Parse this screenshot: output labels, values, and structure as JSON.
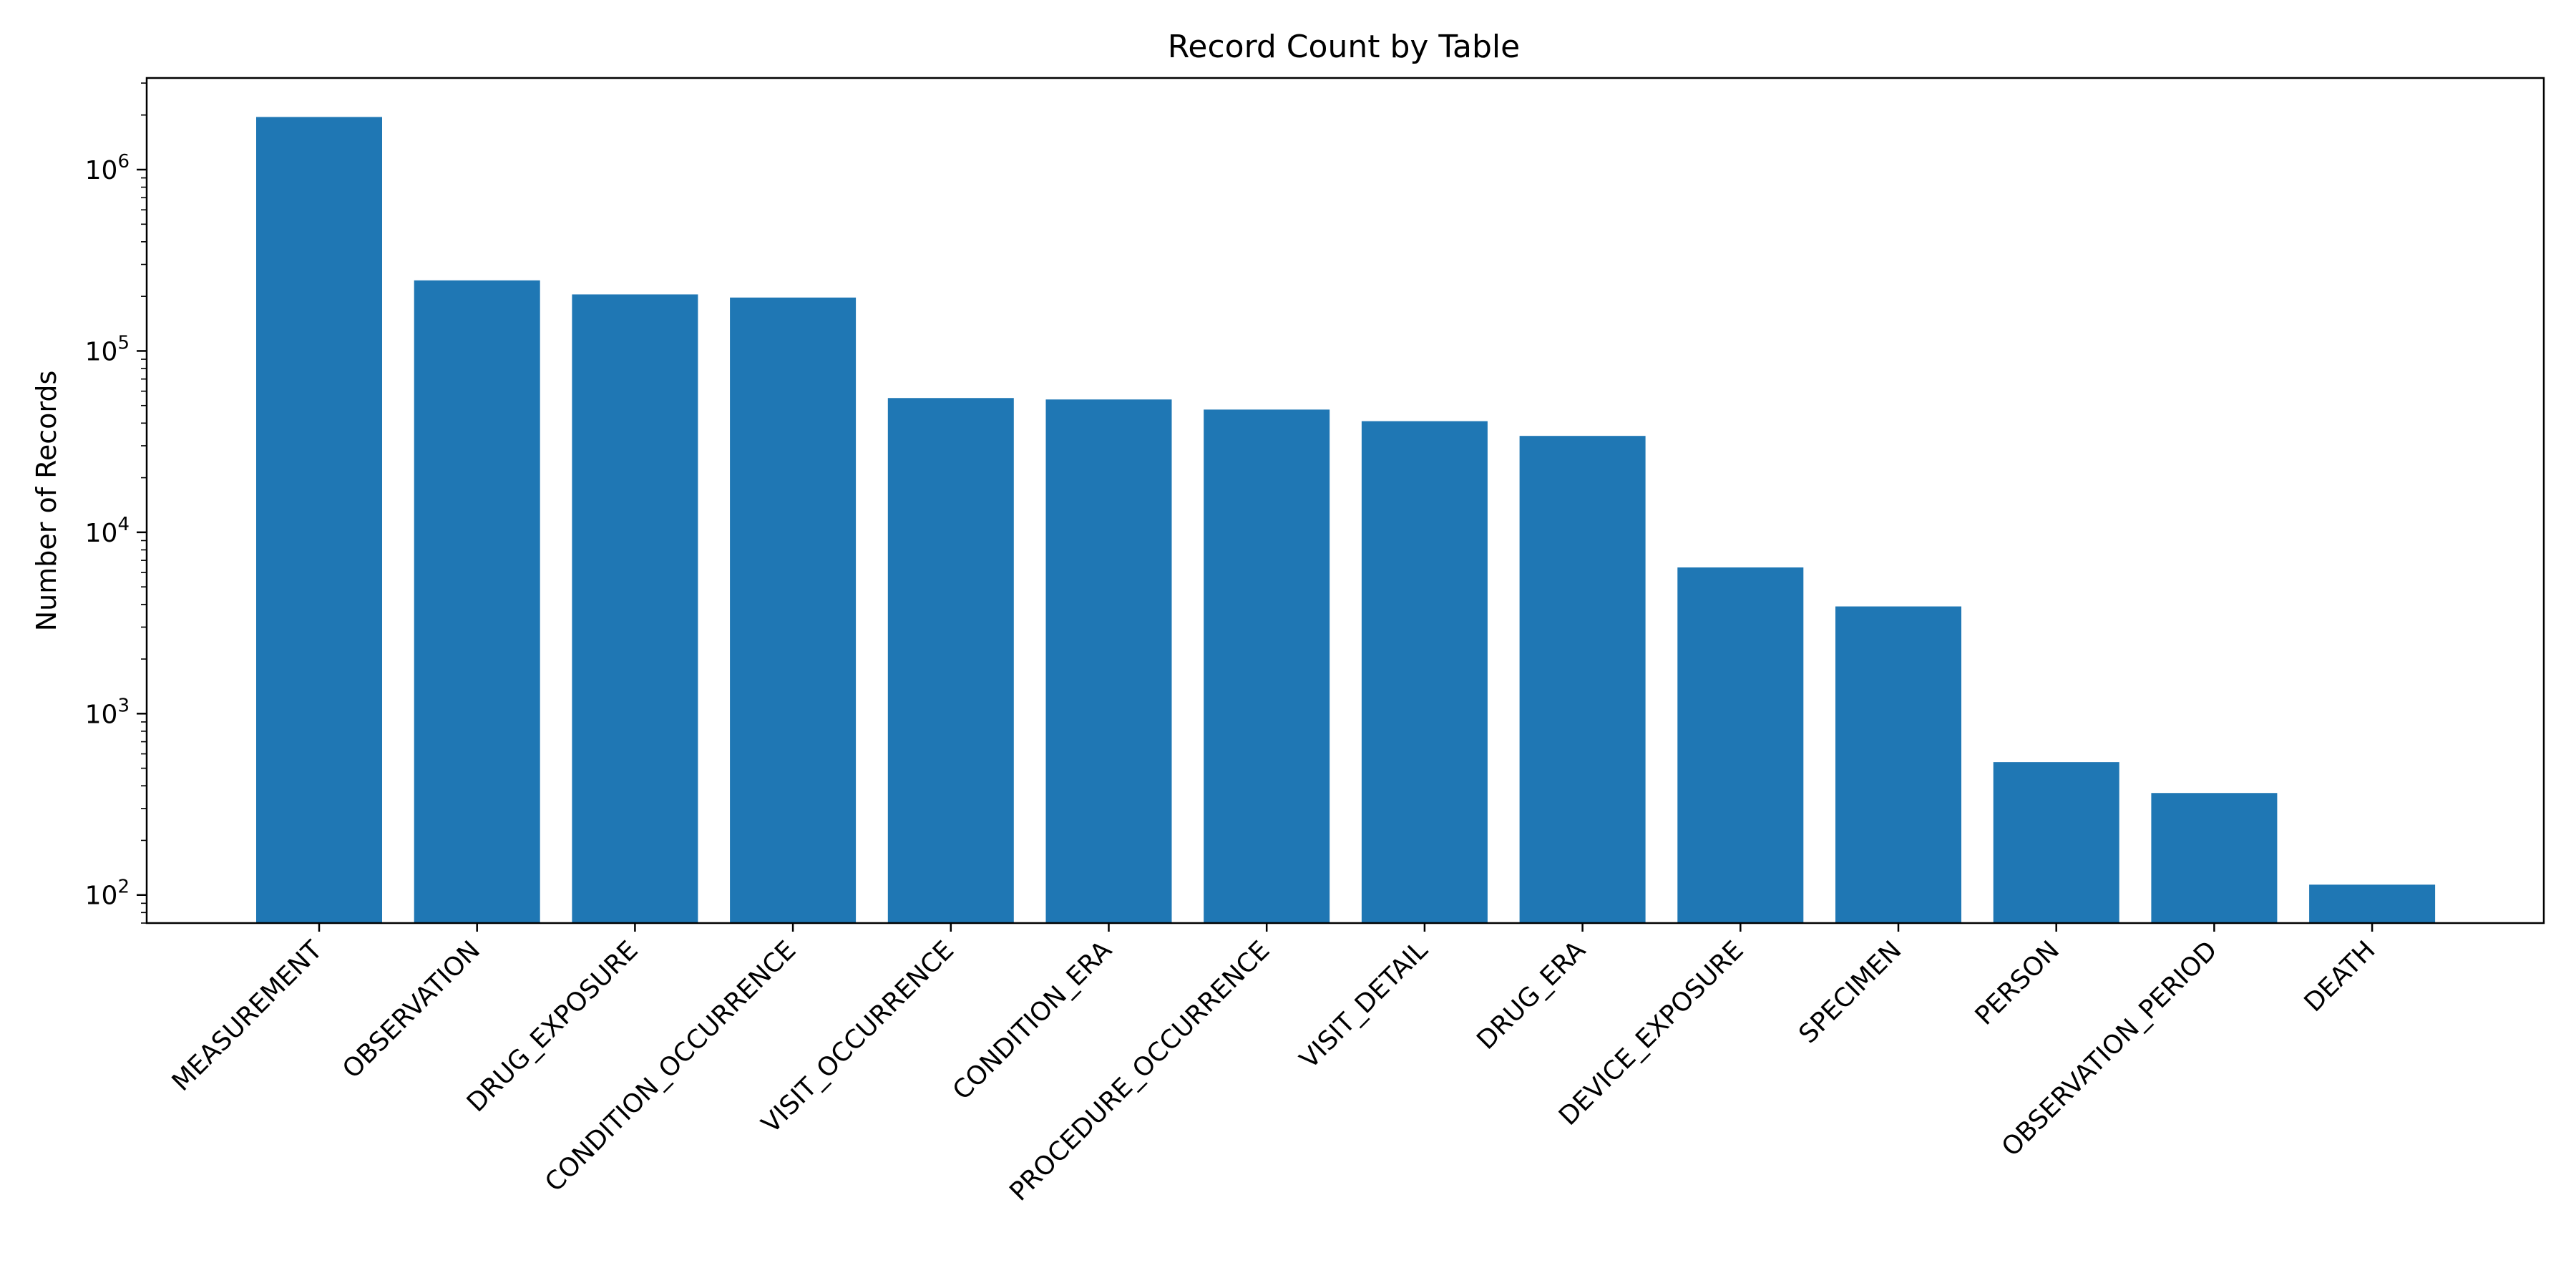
{
  "chart_data": {
    "type": "bar",
    "title": "Record Count by Table",
    "xlabel": "",
    "ylabel": "Number of Records",
    "yscale": "log",
    "ylim": [
      70,
      3200000
    ],
    "grid": false,
    "bar_color": "#1f77b4",
    "categories": [
      "MEASUREMENT",
      "OBSERVATION",
      "DRUG_EXPOSURE",
      "CONDITION_OCCURRENCE",
      "VISIT_OCCURRENCE",
      "CONDITION_ERA",
      "PROCEDURE_OCCURRENCE",
      "VISIT_DETAIL",
      "DRUG_ERA",
      "DEVICE_EXPOSURE",
      "SPECIMEN",
      "PERSON",
      "OBSERVATION_PERIOD",
      "DEATH"
    ],
    "values": [
      1950000,
      245000,
      205000,
      197000,
      55000,
      54000,
      47500,
      41000,
      34000,
      6400,
      3900,
      540,
      365,
      114
    ],
    "y_ticks": [
      {
        "value": 100,
        "base": "10",
        "exp": "2"
      },
      {
        "value": 1000,
        "base": "10",
        "exp": "3"
      },
      {
        "value": 10000,
        "base": "10",
        "exp": "4"
      },
      {
        "value": 100000,
        "base": "10",
        "exp": "5"
      },
      {
        "value": 1000000,
        "base": "10",
        "exp": "6"
      }
    ]
  }
}
